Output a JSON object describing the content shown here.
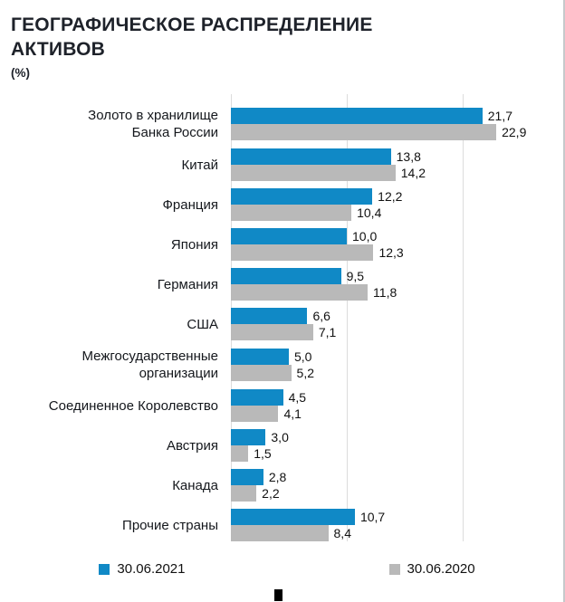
{
  "title": {
    "line1": "ГЕОГРАФИЧЕСКОЕ РАСПРЕДЕЛЕНИЕ",
    "line2": "АКТИВОВ",
    "unit": "(%)"
  },
  "legend": [
    {
      "label": "30.06.2021",
      "color": "#1089c6"
    },
    {
      "label": "30.06.2020",
      "color": "#b9b9b9"
    }
  ],
  "chart_data": {
    "type": "bar",
    "orientation": "horizontal",
    "title": "ГЕОГРАФИЧЕСКОЕ РАСПРЕДЕЛЕНИЕ АКТИВОВ (%)",
    "categories": [
      "Золото в хранилище\nБанка России",
      "Китай",
      "Франция",
      "Япония",
      "Германия",
      "США",
      "Межгосударственные\nорганизации",
      "Соединенное Королевство",
      "Австрия",
      "Канада",
      "Прочие страны"
    ],
    "series": [
      {
        "name": "30.06.2021",
        "color": "#1089c6",
        "values": [
          21.7,
          13.8,
          12.2,
          10.0,
          9.5,
          6.6,
          5.0,
          4.5,
          3.0,
          2.8,
          10.7
        ]
      },
      {
        "name": "30.06.2020",
        "color": "#b9b9b9",
        "values": [
          22.9,
          14.2,
          10.4,
          12.3,
          11.8,
          7.1,
          5.2,
          4.1,
          1.5,
          2.2,
          8.4
        ]
      }
    ],
    "value_labels": "comma-decimal-one-place",
    "xlim": [
      0,
      24
    ],
    "gridlines": [
      0,
      10,
      20
    ],
    "legend_position": "bottom"
  }
}
